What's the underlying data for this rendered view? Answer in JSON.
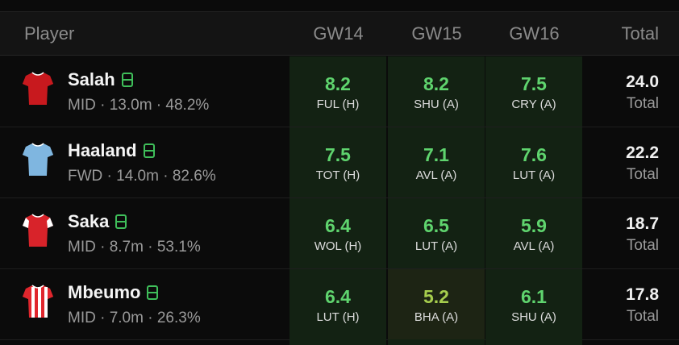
{
  "header": {
    "player": "Player",
    "gameweeks": [
      "GW14",
      "GW15",
      "GW16"
    ],
    "total": "Total"
  },
  "rows": [
    {
      "name": "Salah",
      "meta": "MID · 13.0m · 48.2%",
      "shirt": {
        "body": "#c8191e",
        "sleeve": "#c8191e",
        "trim": "#ffffff",
        "stripes": false
      },
      "cells": [
        {
          "pts": "8.2",
          "fix": "FUL (H)",
          "tone": "good"
        },
        {
          "pts": "8.2",
          "fix": "SHU (A)",
          "tone": "good"
        },
        {
          "pts": "7.5",
          "fix": "CRY (A)",
          "tone": "good"
        }
      ],
      "total": "24.0",
      "total_label": "Total"
    },
    {
      "name": "Haaland",
      "meta": "FWD · 14.0m · 82.6%",
      "shirt": {
        "body": "#7fb6e0",
        "sleeve": "#7fb6e0",
        "trim": "#ffffff",
        "stripes": false
      },
      "cells": [
        {
          "pts": "7.5",
          "fix": "TOT (H)",
          "tone": "good"
        },
        {
          "pts": "7.1",
          "fix": "AVL (A)",
          "tone": "good"
        },
        {
          "pts": "7.6",
          "fix": "LUT (A)",
          "tone": "good"
        }
      ],
      "total": "22.2",
      "total_label": "Total"
    },
    {
      "name": "Saka",
      "meta": "MID · 8.7m · 53.1%",
      "shirt": {
        "body": "#d8232a",
        "sleeve": "#ffffff",
        "trim": "#ffffff",
        "stripes": false
      },
      "cells": [
        {
          "pts": "6.4",
          "fix": "WOL (H)",
          "tone": "good"
        },
        {
          "pts": "6.5",
          "fix": "LUT (A)",
          "tone": "good"
        },
        {
          "pts": "5.9",
          "fix": "AVL (A)",
          "tone": "good"
        }
      ],
      "total": "18.7",
      "total_label": "Total"
    },
    {
      "name": "Mbeumo",
      "meta": "MID · 7.0m · 26.3%",
      "shirt": {
        "body": "#e0262d",
        "sleeve": "#e0262d",
        "trim": "#ffffff",
        "stripes": true
      },
      "cells": [
        {
          "pts": "6.4",
          "fix": "LUT (H)",
          "tone": "good"
        },
        {
          "pts": "5.2",
          "fix": "BHA (A)",
          "tone": "mid"
        },
        {
          "pts": "6.1",
          "fix": "SHU (A)",
          "tone": "good"
        }
      ],
      "total": "17.8",
      "total_label": "Total"
    }
  ],
  "icons": {
    "starter": "pitch-icon"
  }
}
